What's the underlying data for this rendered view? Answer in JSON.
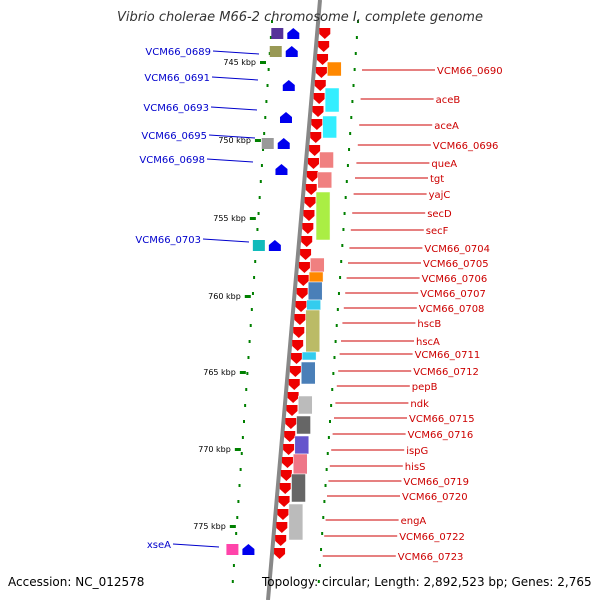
{
  "title": "Vibrio cholerae M66-2 chromosome I, complete genome",
  "accession": "Accession: NC_012578",
  "topology": "Topology: circular; Length: 2,892,523 bp; Genes: 2,765",
  "colors": {
    "reverse_label": "#0000cc",
    "forward_label": "#cc0000",
    "backbone": "#888888",
    "tick": "#008000"
  },
  "scale_labels": [
    "745 kbp",
    "750 kbp",
    "755 kbp",
    "760 kbp",
    "765 kbp",
    "770 kbp",
    "775 kbp"
  ],
  "reverse_genes": [
    "VCM66_0689",
    "VCM66_0691",
    "VCM66_0693",
    "VCM66_0695",
    "VCM66_0698",
    "VCM66_0703",
    "xseA"
  ],
  "forward_genes": [
    "VCM66_0690",
    "aceB",
    "aceA",
    "VCM66_0696",
    "queA",
    "tgt",
    "yajC",
    "secD",
    "secF",
    "VCM66_0704",
    "VCM66_0705",
    "VCM66_0706",
    "VCM66_0707",
    "VCM66_0708",
    "hscB",
    "hscA",
    "VCM66_0711",
    "VCM66_0712",
    "pepB",
    "ndk",
    "VCM66_0715",
    "VCM66_0716",
    "ispG",
    "hisS",
    "VCM66_0719",
    "VCM66_0720",
    "engA",
    "VCM66_0722",
    "VCM66_0723"
  ]
}
